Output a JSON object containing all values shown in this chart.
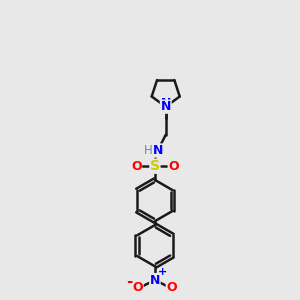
{
  "bg_color": "#e8e8e8",
  "bond_color": "#1a1a1a",
  "bond_width": 1.8,
  "dbo": 0.035,
  "N_color": "#0000ff",
  "O_color": "#ff0000",
  "S_color": "#cccc00",
  "H_color": "#6b8e8e",
  "figsize": [
    3.0,
    3.0
  ],
  "dpi": 100,
  "xlim": [
    -0.5,
    2.5
  ],
  "ylim": [
    -0.5,
    5.5
  ]
}
